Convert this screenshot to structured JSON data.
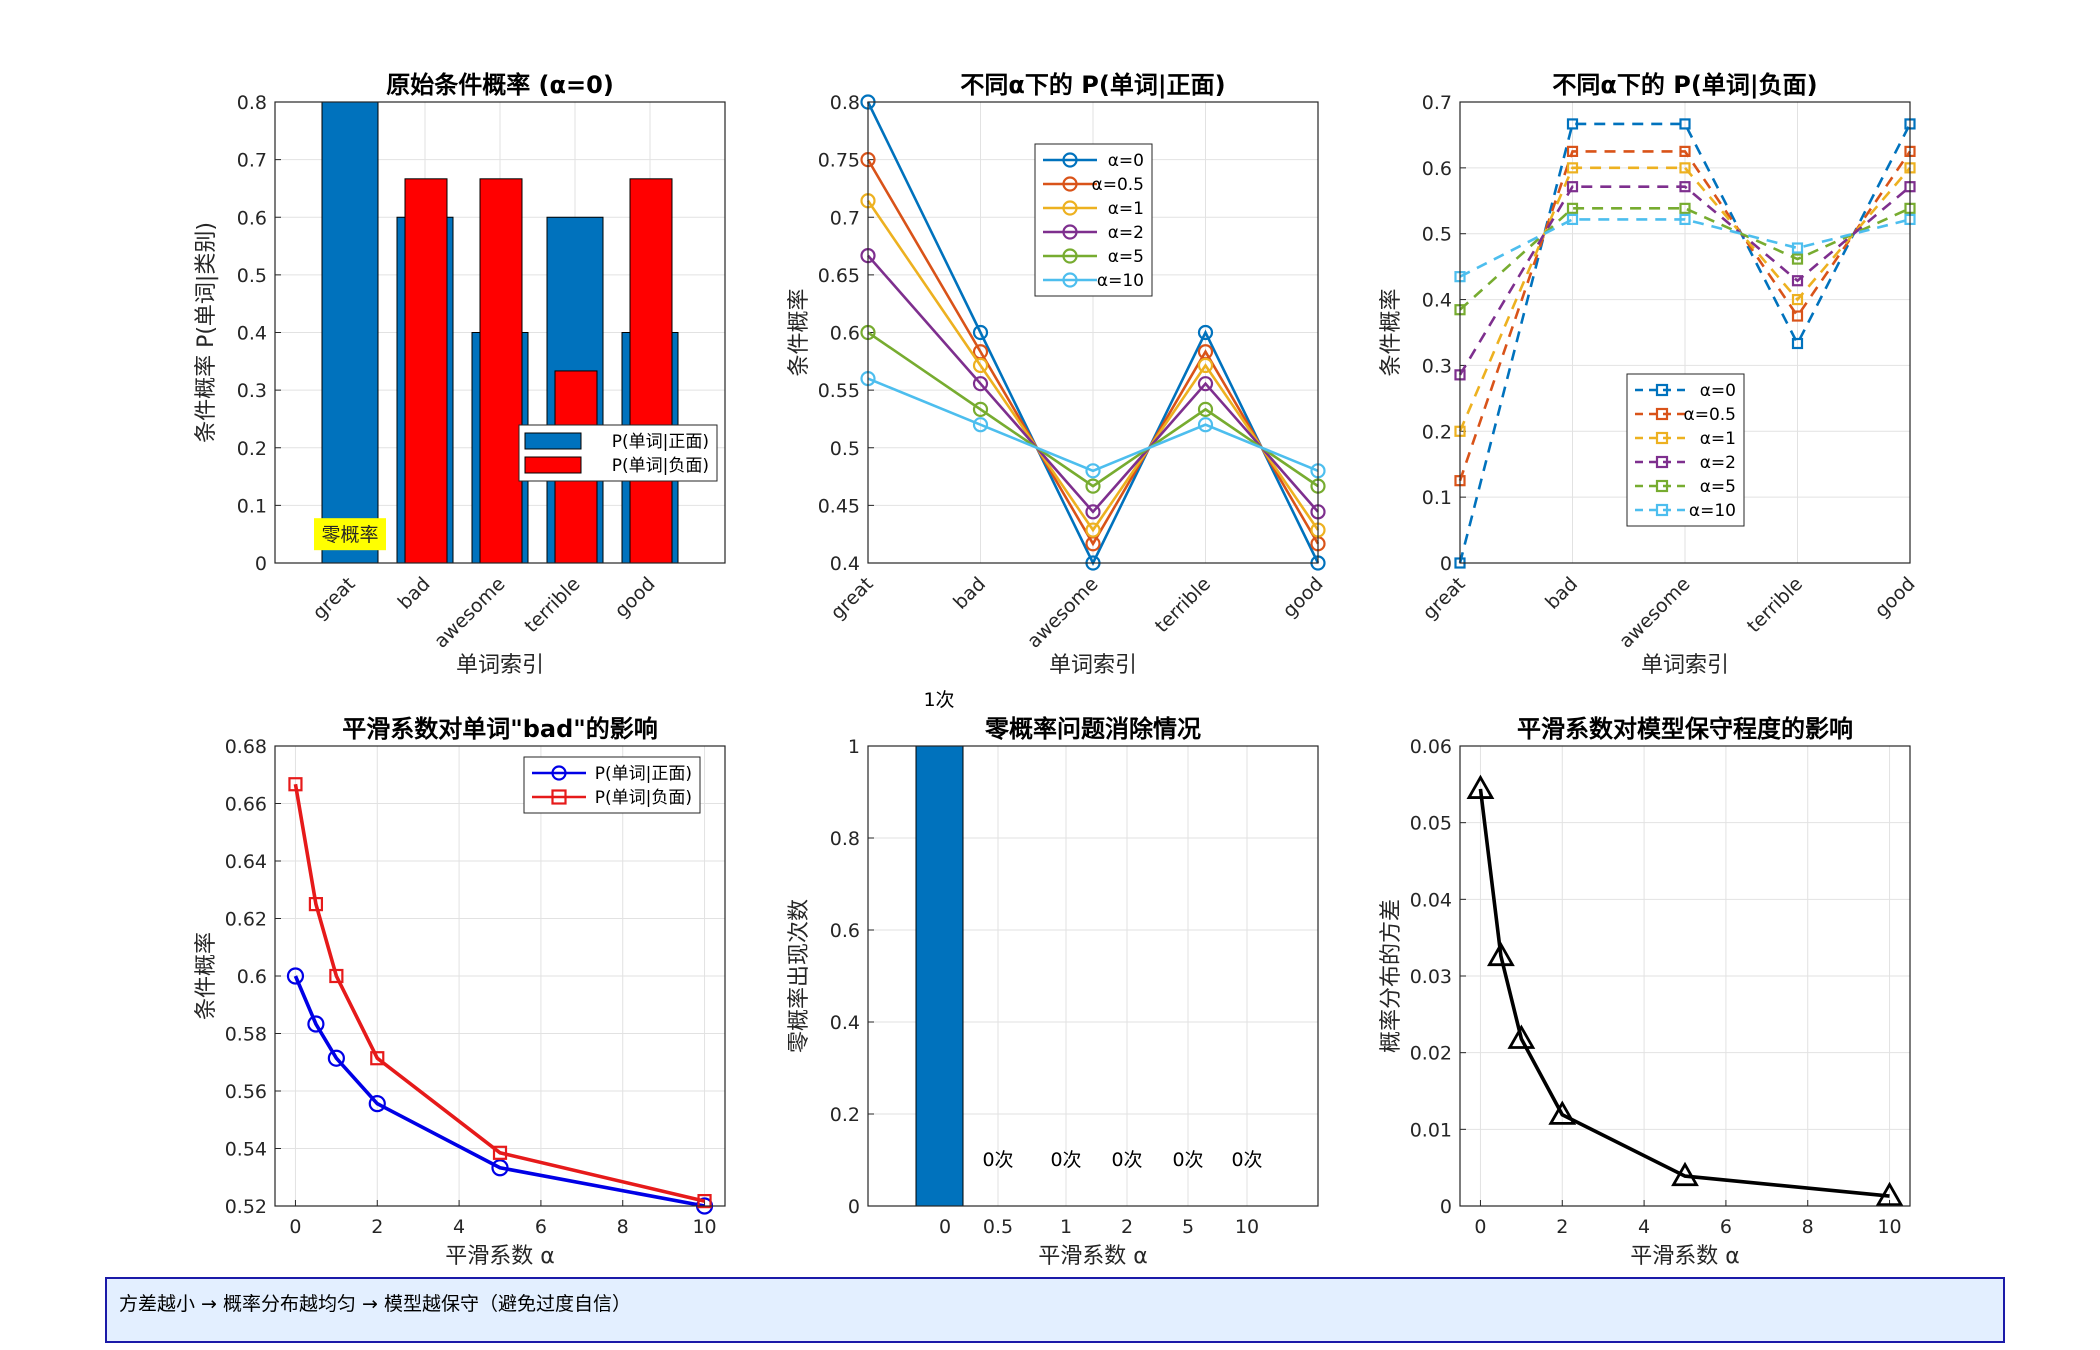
{
  "chart_data": [
    {
      "type": "bar",
      "title": "原始条件概率 (α=0)",
      "xlabel": "单词索引",
      "ylabel": "条件概率 P(单词|类别)",
      "categories": [
        "great",
        "bad",
        "awesome",
        "terrible",
        "good"
      ],
      "ylim": [
        0,
        0.8
      ],
      "yticks": [
        0,
        0.1,
        0.2,
        0.3,
        0.4,
        0.5,
        0.6,
        0.7,
        0.8
      ],
      "series": [
        {
          "name": "P(单词|正面)",
          "values": [
            0.8,
            0.6,
            0.4,
            0.6,
            0.4
          ],
          "color": "#0072BD"
        },
        {
          "name": "P(单词|负面)",
          "values": [
            0.0,
            0.6667,
            0.6667,
            0.3333,
            0.6667
          ],
          "color": "#FF0000"
        }
      ],
      "annotation": "零概率",
      "annotation_color": "#FFFF00",
      "legend": "bottom-right",
      "grid": true
    },
    {
      "type": "line",
      "title": "不同α下的 P(单词|正面)",
      "xlabel": "单词索引",
      "ylabel": "条件概率",
      "categories": [
        "great",
        "bad",
        "awesome",
        "terrible",
        "good"
      ],
      "ylim": [
        0.4,
        0.8
      ],
      "yticks": [
        "0.4",
        "0.45",
        "0.5",
        "0.55",
        "0.6",
        "0.65",
        "0.7",
        "0.75",
        "0.8"
      ],
      "marker": "circle",
      "linestyle": "solid",
      "series": [
        {
          "name": "α=0",
          "values": [
            0.8,
            0.6,
            0.4,
            0.6,
            0.4
          ],
          "color": "#0072BD"
        },
        {
          "name": "α=0.5",
          "values": [
            0.75,
            0.5833,
            0.4167,
            0.5833,
            0.4167
          ],
          "color": "#D95319"
        },
        {
          "name": "α=1",
          "values": [
            0.7143,
            0.5714,
            0.4286,
            0.5714,
            0.4286
          ],
          "color": "#EDB120"
        },
        {
          "name": "α=2",
          "values": [
            0.6667,
            0.5556,
            0.4444,
            0.5556,
            0.4444
          ],
          "color": "#7E2F8E"
        },
        {
          "name": "α=5",
          "values": [
            0.6,
            0.5333,
            0.4667,
            0.5333,
            0.4667
          ],
          "color": "#77AC30"
        },
        {
          "name": "α=10",
          "values": [
            0.56,
            0.52,
            0.48,
            0.52,
            0.48
          ],
          "color": "#4DBEEE"
        }
      ],
      "legend": "top-center",
      "grid": true
    },
    {
      "type": "line",
      "title": "不同α下的 P(单词|负面)",
      "xlabel": "单词索引",
      "ylabel": "条件概率",
      "categories": [
        "great",
        "bad",
        "awesome",
        "terrible",
        "good"
      ],
      "ylim": [
        0,
        0.7
      ],
      "yticks": [
        0,
        0.1,
        0.2,
        0.3,
        0.4,
        0.5,
        0.6,
        0.7
      ],
      "marker": "square",
      "linestyle": "dashed",
      "series": [
        {
          "name": "α=0",
          "values": [
            0.0,
            0.6667,
            0.6667,
            0.3333,
            0.6667
          ],
          "color": "#0072BD"
        },
        {
          "name": "α=0.5",
          "values": [
            0.125,
            0.625,
            0.625,
            0.375,
            0.625
          ],
          "color": "#D95319"
        },
        {
          "name": "α=1",
          "values": [
            0.2,
            0.6,
            0.6,
            0.4,
            0.6
          ],
          "color": "#EDB120"
        },
        {
          "name": "α=2",
          "values": [
            0.2857,
            0.5714,
            0.5714,
            0.4286,
            0.5714
          ],
          "color": "#7E2F8E"
        },
        {
          "name": "α=5",
          "values": [
            0.3846,
            0.5385,
            0.5385,
            0.4615,
            0.5385
          ],
          "color": "#77AC30"
        },
        {
          "name": "α=10",
          "values": [
            0.4348,
            0.5217,
            0.5217,
            0.4783,
            0.5217
          ],
          "color": "#4DBEEE"
        }
      ],
      "legend": "bottom-center",
      "grid": true
    },
    {
      "type": "line",
      "title": "平滑系数对单词\"bad\"的影响",
      "xlabel": "平滑系数 α",
      "ylabel": "条件概率",
      "x": [
        0,
        0.5,
        1,
        2,
        5,
        10
      ],
      "xlim": [
        -0.5,
        10.5
      ],
      "xticks": [
        0,
        2,
        4,
        6,
        8,
        10
      ],
      "ylim": [
        0.52,
        0.68
      ],
      "yticks": [
        "0.52",
        "0.54",
        "0.56",
        "0.58",
        "0.6",
        "0.62",
        "0.64",
        "0.66",
        "0.68"
      ],
      "series": [
        {
          "name": "P(单词|正面)",
          "values": [
            0.6,
            0.5833,
            0.5714,
            0.5556,
            0.5333,
            0.52
          ],
          "color": "#0000E6",
          "marker": "circle"
        },
        {
          "name": "P(单词|负面)",
          "values": [
            0.6667,
            0.625,
            0.6,
            0.5714,
            0.5385,
            0.5217
          ],
          "color": "#E61A1A",
          "marker": "square"
        }
      ],
      "legend": "top-right",
      "grid": true
    },
    {
      "type": "bar",
      "title": "零概率问题消除情况",
      "xlabel": "平滑系数 α",
      "ylabel": "零概率出现次数",
      "categories": [
        "0",
        "0.5",
        "1",
        "2",
        "5",
        "10"
      ],
      "values": [
        1,
        0,
        0,
        0,
        0,
        0
      ],
      "data_labels": [
        "1次",
        "0次",
        "0次",
        "0次",
        "0次",
        "0次"
      ],
      "ylim": [
        0,
        1
      ],
      "yticks": [
        "0",
        "0.2",
        "0.4",
        "0.6",
        "0.8",
        "1"
      ],
      "color": "#0072BD",
      "grid": true
    },
    {
      "type": "line",
      "title": "平滑系数对模型保守程度的影响",
      "xlabel": "平滑系数 α",
      "ylabel": "概率分布的方差",
      "x": [
        0,
        0.5,
        1,
        2,
        5,
        10
      ],
      "xlim": [
        -0.5,
        10.5
      ],
      "xticks": [
        0,
        2,
        4,
        6,
        8,
        10
      ],
      "ylim": [
        0,
        0.06
      ],
      "yticks": [
        "0",
        "0.01",
        "0.02",
        "0.03",
        "0.04",
        "0.05",
        "0.06"
      ],
      "series": [
        {
          "values": [
            0.0544,
            0.0326,
            0.0218,
            0.0119,
            0.0039,
            0.0013
          ],
          "color": "#000000",
          "marker": "triangle"
        }
      ],
      "grid": true
    }
  ],
  "note": {
    "text": "方差越小 → 概率分布越均匀 → 模型越保守（避免过度自信）"
  }
}
